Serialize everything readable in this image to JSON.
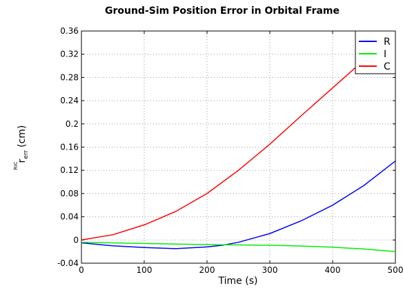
{
  "chart_data": {
    "type": "line",
    "title": "Ground-Sim Position Error in Orbital Frame",
    "xlabel": "Time (s)",
    "ylabel_prefix": "RIC",
    "ylabel_main": "r",
    "ylabel_sub": "err",
    "ylabel_unit": "(cm)",
    "xlim": [
      0,
      500
    ],
    "ylim": [
      -0.04,
      0.36
    ],
    "xticks": [
      0,
      100,
      200,
      300,
      400,
      500
    ],
    "yticks": [
      -0.04,
      0,
      0.04,
      0.08,
      0.12,
      0.16,
      0.2,
      0.24,
      0.28,
      0.32,
      0.36
    ],
    "ytick_labels": [
      "-0.04",
      "0",
      "0.04",
      "0.08",
      "0.12",
      "0.16",
      "0.2",
      "0.24",
      "0.28",
      "0.32",
      "0.36"
    ],
    "grid": true,
    "legend_position": "top-right",
    "series": [
      {
        "name": "R",
        "color": "#0000ff",
        "x": [
          0,
          50,
          100,
          150,
          200,
          225,
          250,
          300,
          350,
          400,
          450,
          500
        ],
        "y": [
          -0.005,
          -0.01,
          -0.013,
          -0.015,
          -0.012,
          -0.009,
          -0.004,
          0.011,
          0.033,
          0.06,
          0.094,
          0.136
        ]
      },
      {
        "name": "I",
        "color": "#00ee00",
        "x": [
          0,
          50,
          100,
          150,
          200,
          250,
          300,
          350,
          400,
          450,
          500
        ],
        "y": [
          -0.004,
          -0.005,
          -0.006,
          -0.007,
          -0.008,
          -0.0085,
          -0.009,
          -0.0105,
          -0.0125,
          -0.0155,
          -0.02
        ]
      },
      {
        "name": "C",
        "color": "#ff0000",
        "x": [
          0,
          50,
          100,
          150,
          200,
          250,
          300,
          350,
          400,
          450,
          500
        ],
        "y": [
          0.0,
          0.009,
          0.026,
          0.049,
          0.08,
          0.12,
          0.165,
          0.214,
          0.262,
          0.31,
          0.36
        ]
      }
    ]
  }
}
